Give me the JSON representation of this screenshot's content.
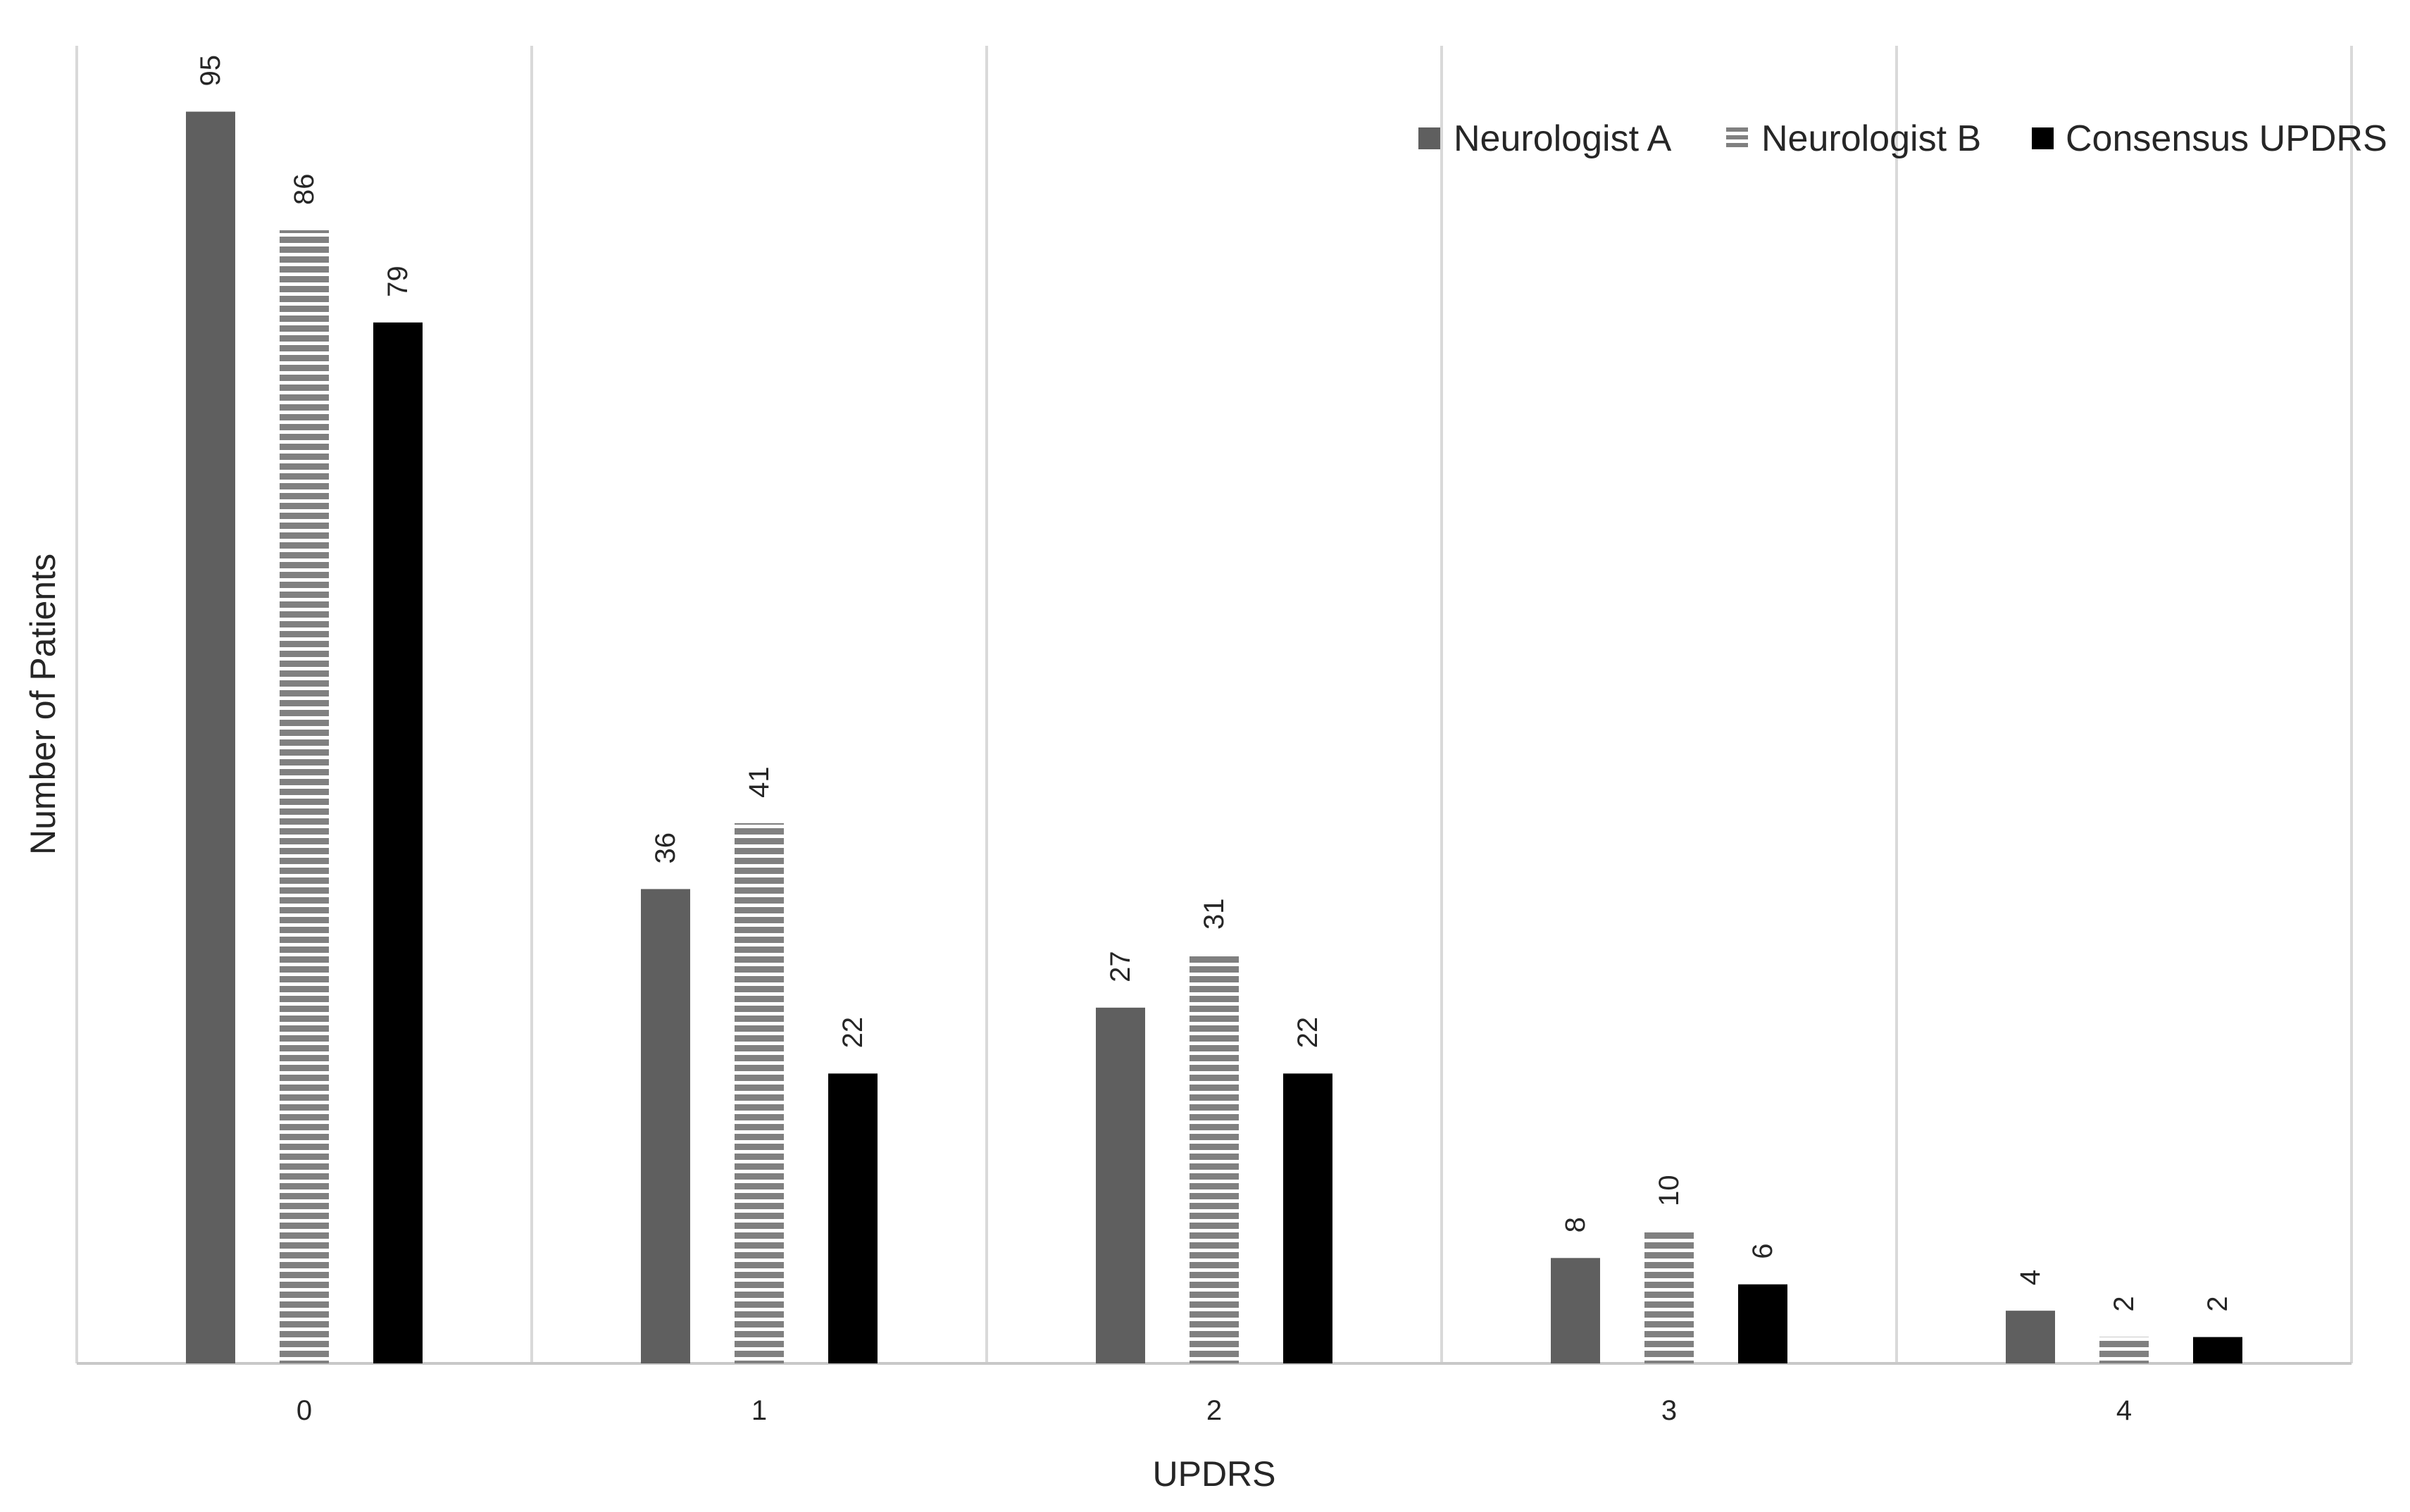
{
  "chart_data": {
    "type": "bar",
    "categories": [
      "0",
      "1",
      "2",
      "3",
      "4"
    ],
    "series": [
      {
        "name": "Neurologist A",
        "values": [
          95,
          36,
          27,
          8,
          4
        ],
        "color": "#5f5f5f",
        "pattern": "solid"
      },
      {
        "name": "Neurologist B",
        "values": [
          86,
          41,
          31,
          10,
          2
        ],
        "color": "#808080",
        "pattern": "horizontal-stripes"
      },
      {
        "name": "Consensus UPDRS",
        "values": [
          79,
          22,
          22,
          6,
          2
        ],
        "color": "#000000",
        "pattern": "solid"
      }
    ],
    "xlabel": "UPDRS",
    "ylabel": "Number of Patients",
    "ylim": [
      0,
      100
    ],
    "data_labels": true,
    "grid": {
      "vertical": true,
      "horizontal": false
    },
    "legend_position": "top-right"
  }
}
